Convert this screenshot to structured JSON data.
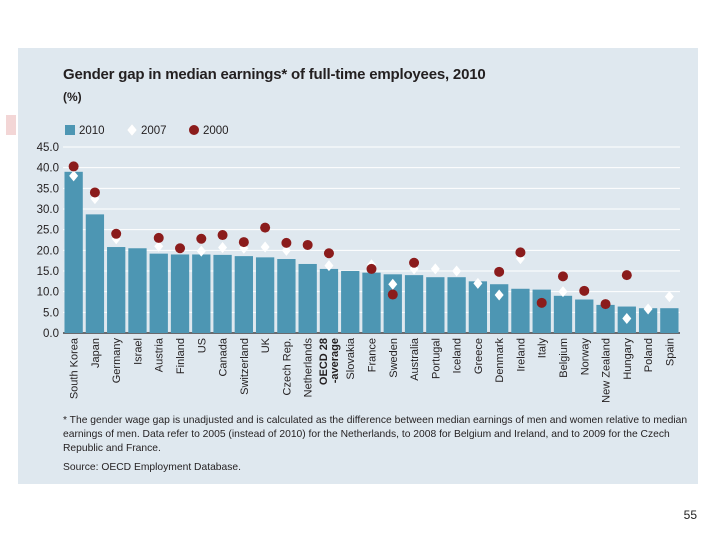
{
  "chart_data": {
    "type": "bar",
    "title": "Gender gap in median earnings* of full-time employees, 2010",
    "subtitle": "(%)",
    "categories": [
      "South Korea",
      "Japan",
      "Germany",
      "Israel",
      "Austria",
      "Finland",
      "US",
      "Canada",
      "Switzerland",
      "UK",
      "Czech Rep.",
      "Netherlands",
      "OECD 28 average",
      "Slovakia",
      "France",
      "Sweden",
      "Australia",
      "Portugal",
      "Iceland",
      "Greece",
      "Denmark",
      "Ireland",
      "Italy",
      "Belgium",
      "Norway",
      "New Zealand",
      "Hungary",
      "Poland",
      "Spain"
    ],
    "series": [
      {
        "name": "2010",
        "kind": "bar",
        "color": "#4d96b3",
        "values": [
          39.0,
          28.7,
          20.8,
          20.5,
          19.2,
          19.0,
          19.0,
          18.9,
          18.6,
          18.3,
          17.9,
          16.7,
          15.5,
          15.0,
          14.6,
          14.2,
          14.0,
          13.5,
          13.5,
          12.5,
          11.8,
          10.7,
          10.5,
          9.0,
          8.1,
          6.8,
          6.4,
          6.0,
          6.0
        ]
      },
      {
        "name": "2007",
        "kind": "diamond",
        "color": "#ffffff",
        "values": [
          38.0,
          32.5,
          22.8,
          null,
          21.0,
          20.5,
          19.8,
          20.7,
          20.5,
          20.8,
          20.0,
          null,
          16.3,
          null,
          16.5,
          11.8,
          15.5,
          15.5,
          15.0,
          12.0,
          9.2,
          18.0,
          null,
          10.0,
          null,
          null,
          3.5,
          5.8,
          8.8
        ]
      },
      {
        "name": "2000",
        "kind": "dot",
        "color": "#8b1c1c",
        "values": [
          40.3,
          34.0,
          24.0,
          null,
          23.0,
          20.5,
          22.8,
          23.7,
          22.0,
          25.5,
          21.8,
          21.3,
          19.3,
          null,
          15.5,
          9.3,
          17.0,
          null,
          null,
          null,
          14.8,
          19.5,
          7.3,
          13.7,
          10.2,
          7.0,
          14.0,
          null,
          null
        ]
      }
    ],
    "ylim": [
      0,
      45
    ],
    "yticks": [
      "0.0",
      "5.0",
      "10.0",
      "15.0",
      "20.0",
      "25.0",
      "30.0",
      "35.0",
      "40.0",
      "45.0"
    ],
    "legend": [
      "2010",
      "2007",
      "2000"
    ],
    "legend_position": "top-left",
    "grid": true,
    "xlabel": "",
    "ylabel": "%"
  },
  "footnote": "* The gender wage gap is unadjusted and is calculated as the difference between median earnings of men and women relative to median earnings of men. Data refer to 2005 (instead of 2010) for the Netherlands, to 2008 for Belgium and Ireland, and to 2009 for the Czech Republic and France.",
  "source": "Source: OECD Employment Database.",
  "page_number": "55"
}
